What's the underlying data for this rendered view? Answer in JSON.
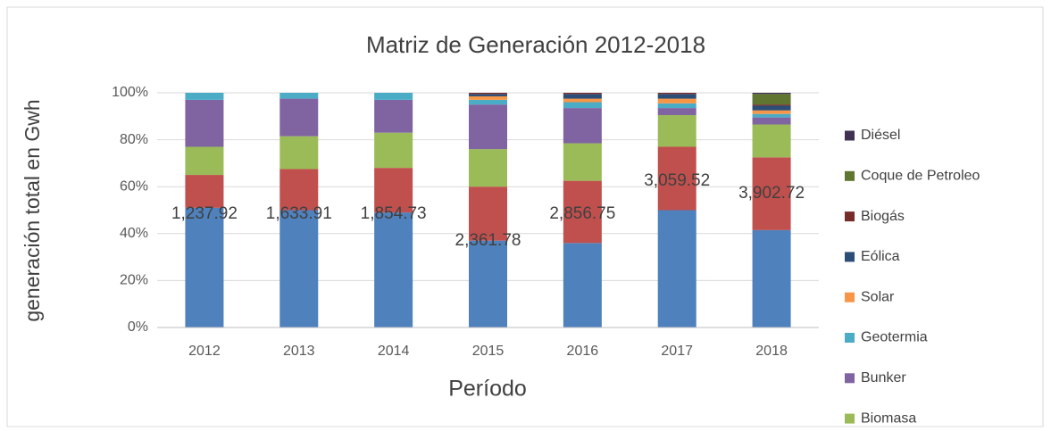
{
  "chart_data": {
    "type": "stacked_bar_100",
    "title": "Matriz de Generación 2012-2018",
    "x_label": "Período",
    "y_label": "generación total en Gwh",
    "categories": [
      "2012",
      "2013",
      "2014",
      "2015",
      "2016",
      "2017",
      "2018"
    ],
    "series": [
      {
        "color": "#4f81bd",
        "values": [
          51,
          50,
          49,
          37,
          36,
          50,
          41.5
        ]
      },
      {
        "color": "#c0504d",
        "values": [
          14,
          17.5,
          19,
          23,
          26.5,
          27,
          31
        ]
      },
      {
        "name": "Biomasa",
        "color": "#9bbb59",
        "values": [
          12,
          14,
          15,
          16,
          16,
          13.5,
          14
        ]
      },
      {
        "name": "Bunker",
        "color": "#8064a2",
        "values": [
          20,
          16,
          14,
          19,
          15,
          3,
          3
        ]
      },
      {
        "name": "Geotermia",
        "color": "#4bacc6",
        "values": [
          3,
          2.5,
          3,
          2,
          2.5,
          2,
          1.5
        ]
      },
      {
        "name": "Solar",
        "color": "#f79646",
        "values": [
          0,
          0,
          0,
          1.5,
          1.5,
          2,
          1.5
        ]
      },
      {
        "name": "Eólica",
        "color": "#2c4d75",
        "values": [
          0,
          0,
          0,
          1,
          2,
          2,
          2
        ]
      },
      {
        "name": "Biogás",
        "color": "#772c2a",
        "values": [
          0,
          0,
          0,
          0.5,
          0.5,
          0.5,
          0.5
        ]
      },
      {
        "name": "Coque de Petroleo",
        "color": "#5f7530",
        "values": [
          0,
          0,
          0,
          0,
          0,
          0,
          4.5
        ]
      },
      {
        "name": "Diésel",
        "color": "#403152",
        "values": [
          0,
          0,
          0,
          0,
          0,
          0,
          0.5
        ]
      }
    ],
    "annotations": [
      "1,237.92",
      "1,633.91",
      "1,854.73",
      "2,361.78",
      "2,856.75",
      "3,059.52",
      "3,902.72"
    ],
    "ylim": [
      0,
      100
    ],
    "yticks": [
      {
        "value": 0,
        "label": "0%"
      },
      {
        "value": 20,
        "label": "20%"
      },
      {
        "value": 40,
        "label": "40%"
      },
      {
        "value": 60,
        "label": "60%"
      },
      {
        "value": 80,
        "label": "80%"
      },
      {
        "value": 100,
        "label": "100%"
      }
    ],
    "grid": true
  }
}
